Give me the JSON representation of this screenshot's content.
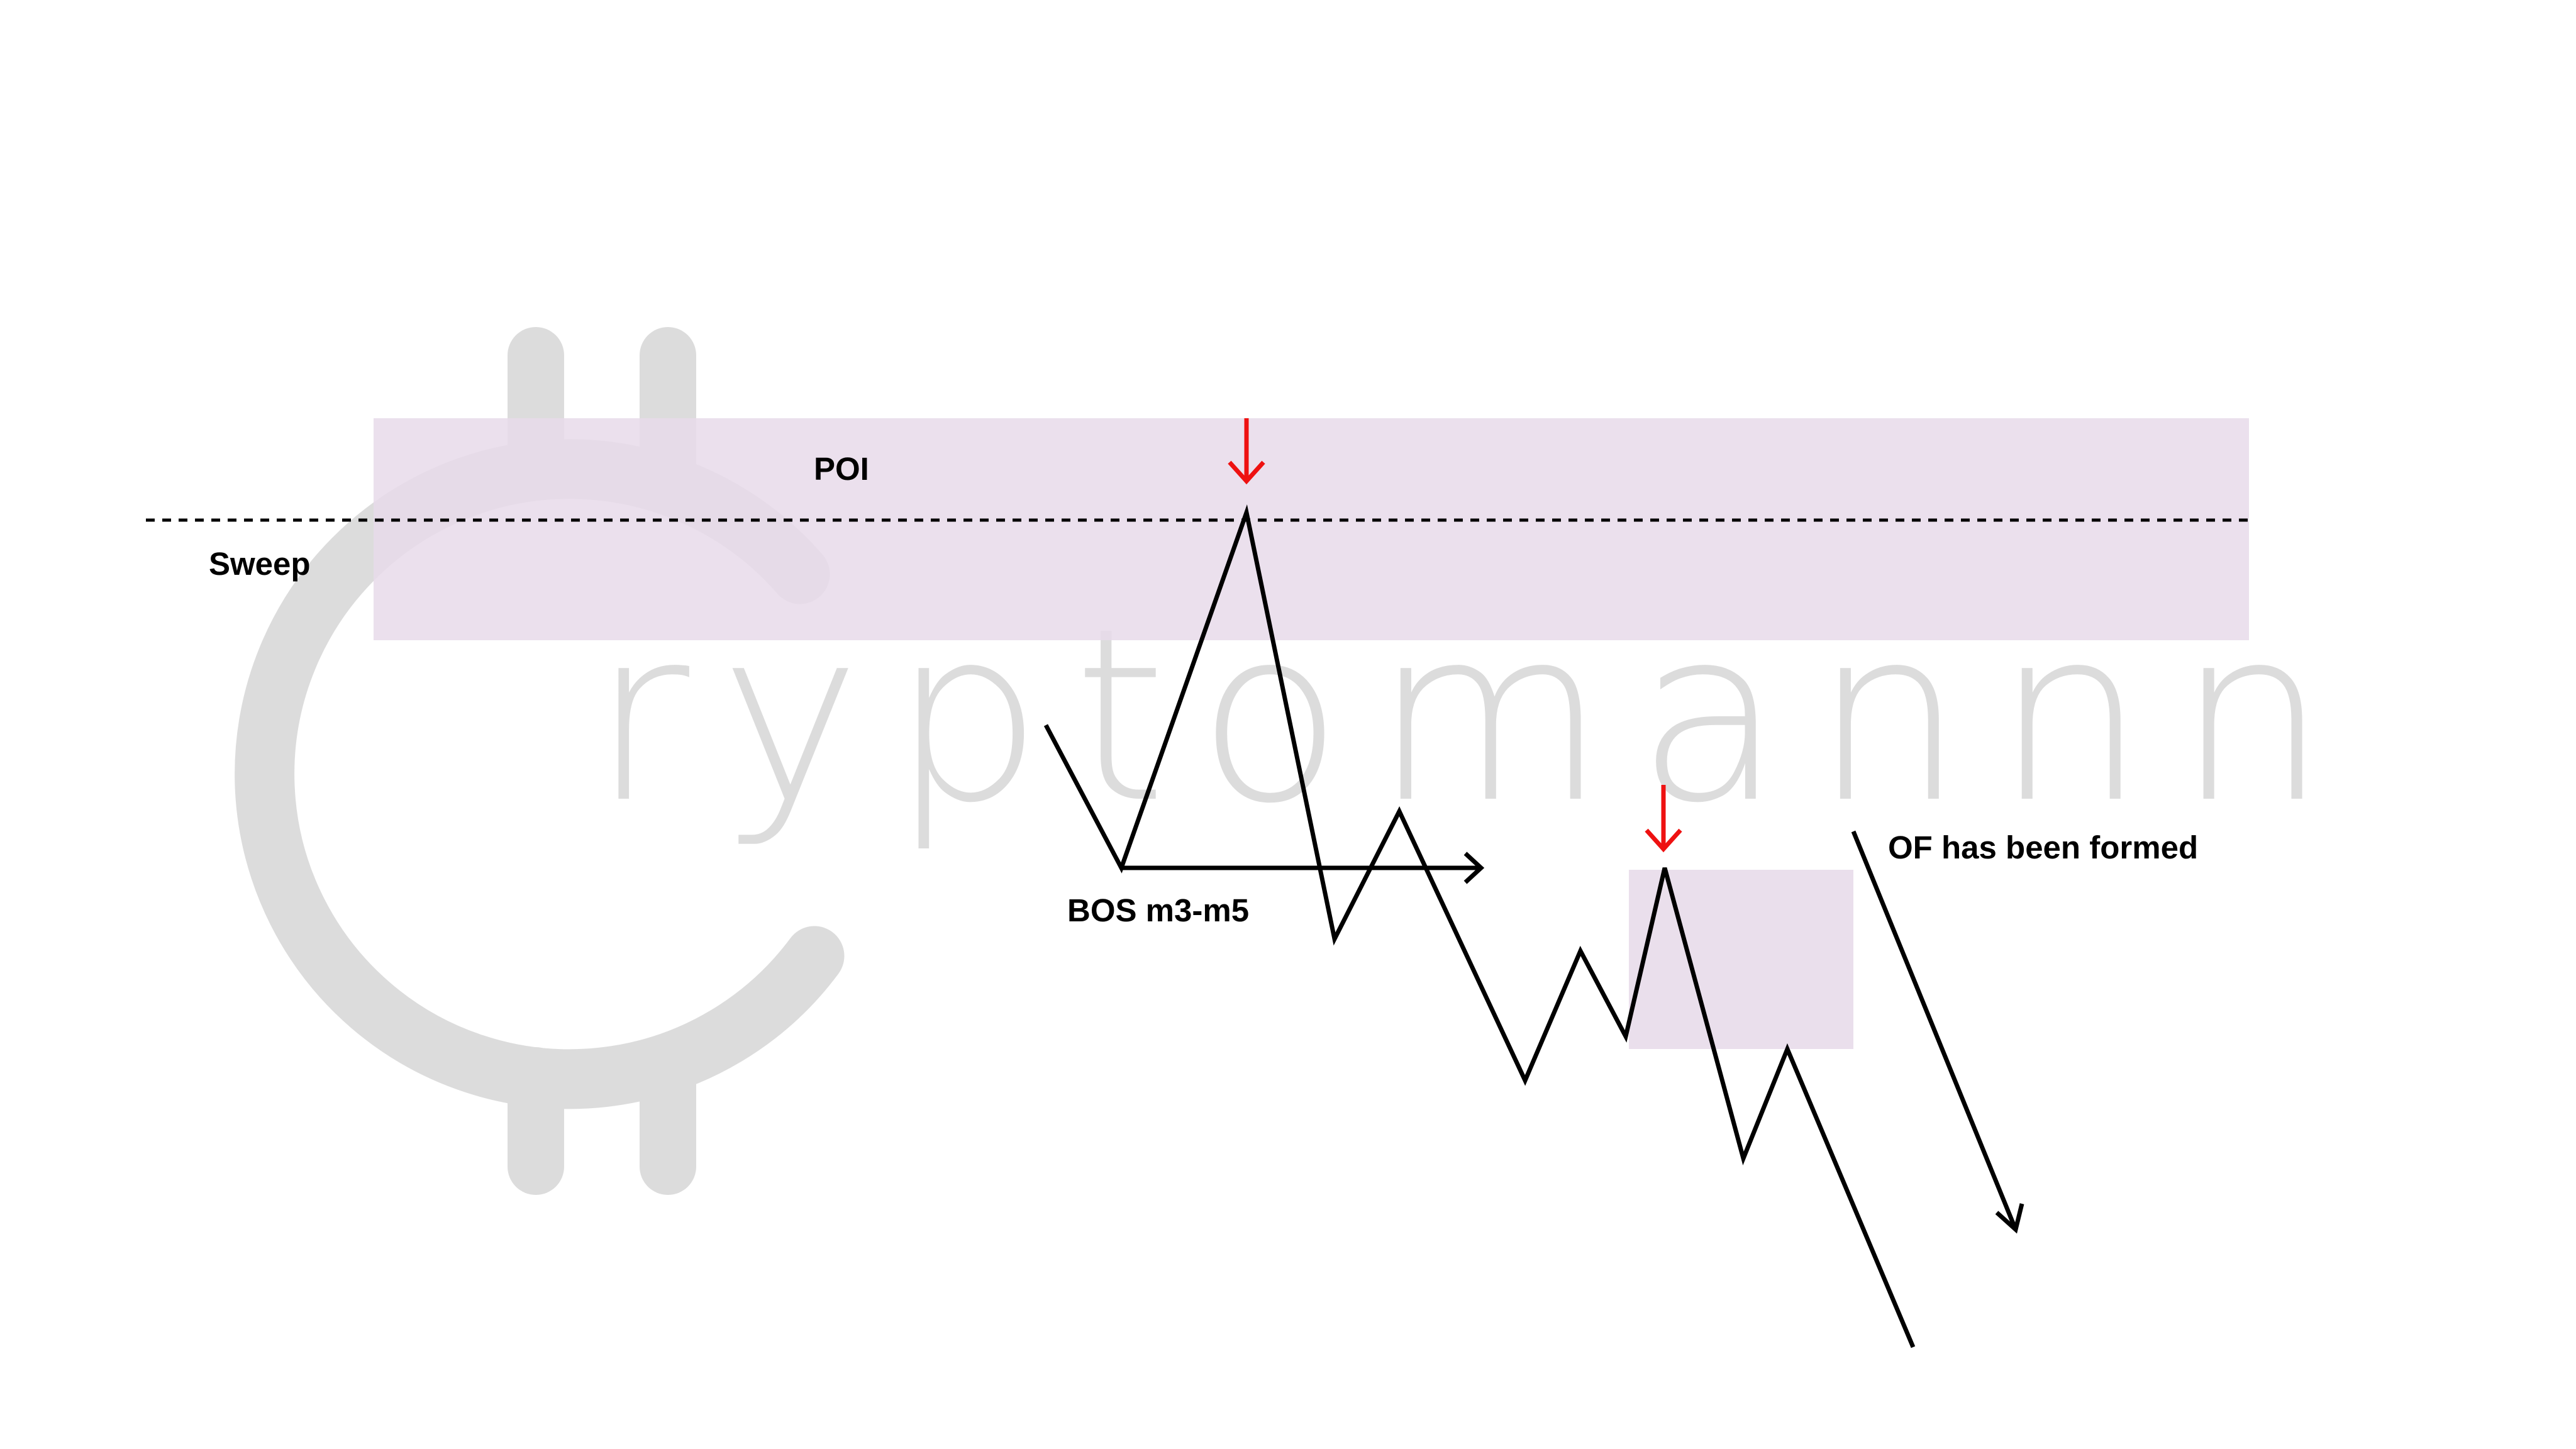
{
  "colors": {
    "background": "#ffffff",
    "zone_fill": "#e8dbea",
    "price_line": "#000000",
    "marker_arrow": "#ee1111",
    "watermark": "#dcdcdc"
  },
  "watermark": {
    "text": "ryptomannn",
    "icon": "bitcoin-c-logo-icon"
  },
  "labels": {
    "poi": "POI",
    "sweep": "Sweep",
    "bos": "BOS m3-m5",
    "of": "OF has been formed"
  },
  "icons": {
    "poi_marker": "down-arrow-icon",
    "ob_marker": "down-arrow-icon",
    "bos_arrow": "right-arrow-icon",
    "trend_arrow": "down-right-arrow-icon"
  }
}
